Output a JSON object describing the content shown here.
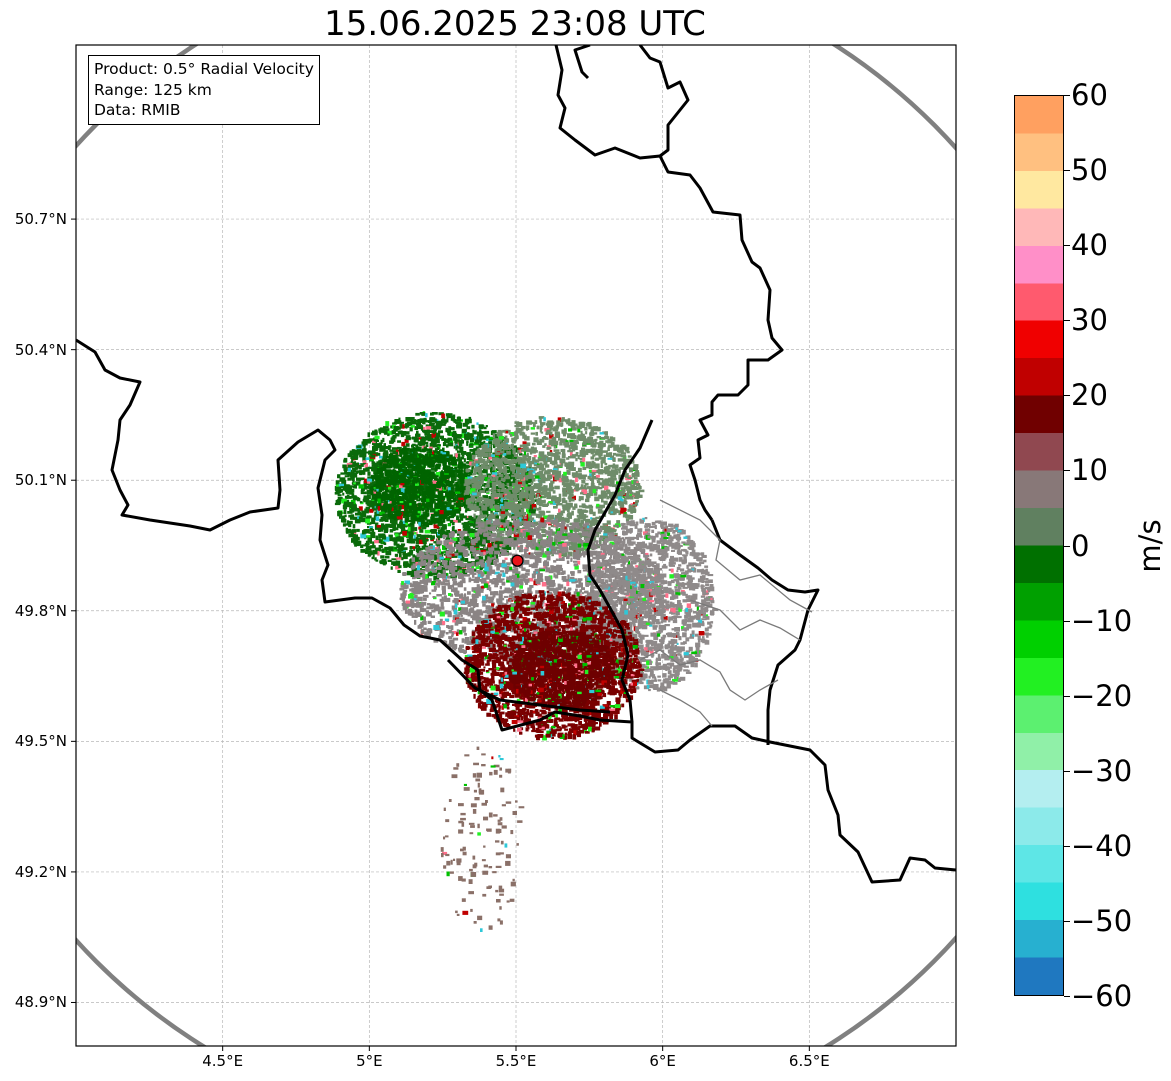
{
  "title": "15.06.2025 23:08 UTC",
  "info": {
    "product": "Product: 0.5° Radial Velocity",
    "range": "Range: 125 km",
    "source": "Data: RMIB"
  },
  "map": {
    "lon_range": [
      4.0,
      7.0
    ],
    "lat_range": [
      48.8,
      51.1
    ],
    "lat_ticks": [
      {
        "value": 50.7,
        "label": "50.7°N"
      },
      {
        "value": 50.4,
        "label": "50.4°N"
      },
      {
        "value": 50.1,
        "label": "50.1°N"
      },
      {
        "value": 49.8,
        "label": "49.8°N"
      },
      {
        "value": 49.5,
        "label": "49.5°N"
      },
      {
        "value": 49.2,
        "label": "49.2°N"
      },
      {
        "value": 48.9,
        "label": "48.9°N"
      }
    ],
    "lon_ticks": [
      {
        "value": 4.5,
        "label": "4.5°E"
      },
      {
        "value": 5.0,
        "label": "5°E"
      },
      {
        "value": 5.5,
        "label": "5.5°E"
      },
      {
        "value": 6.0,
        "label": "6°E"
      },
      {
        "value": 6.5,
        "label": "6.5°E"
      }
    ],
    "radar_site": {
      "lon": 5.505,
      "lat": 49.915
    },
    "range_ring_color": "#808080",
    "site_color": "#e8151b"
  },
  "colorbar": {
    "unit": "m/s",
    "min": -60,
    "max": 60,
    "ticks": [
      {
        "value": 60,
        "label": "60"
      },
      {
        "value": 50,
        "label": "50"
      },
      {
        "value": 40,
        "label": "40"
      },
      {
        "value": 30,
        "label": "30"
      },
      {
        "value": 20,
        "label": "20"
      },
      {
        "value": 10,
        "label": "10"
      },
      {
        "value": 0,
        "label": "0"
      },
      {
        "value": -10,
        "label": "−10"
      },
      {
        "value": -20,
        "label": "−20"
      },
      {
        "value": -30,
        "label": "−30"
      },
      {
        "value": -40,
        "label": "−40"
      },
      {
        "value": -50,
        "label": "−50"
      },
      {
        "value": -60,
        "label": "−60"
      }
    ],
    "colors": [
      "#1f78c0",
      "#27b0d0",
      "#2ee0e0",
      "#5ee6e6",
      "#8ceaea",
      "#b4eef0",
      "#90f0a8",
      "#5cf070",
      "#22f022",
      "#00d000",
      "#00a000",
      "#007000",
      "#608060",
      "#887878",
      "#904850",
      "#700000",
      "#c00000",
      "#f00000",
      "#ff5a6e",
      "#ff8fc8",
      "#ffb8b8",
      "#ffe8a0",
      "#ffc080",
      "#ffa060"
    ]
  },
  "echoes": [
    {
      "name": "north-approaching-zone",
      "lon": 5.22,
      "lat": 50.07,
      "rlon": 0.34,
      "rlat": 0.19,
      "color": "#0a6a0a",
      "density": 0.55
    },
    {
      "name": "north-approaching-core",
      "lon": 5.17,
      "lat": 50.09,
      "rlon": 0.17,
      "rlat": 0.09,
      "color": "#006400",
      "density": 0.75
    },
    {
      "name": "north-near-zero-zone",
      "lon": 5.62,
      "lat": 50.09,
      "rlon": 0.3,
      "rlat": 0.16,
      "color": "#6f8c6a",
      "density": 0.5
    },
    {
      "name": "center-near-zero-zone",
      "lon": 5.55,
      "lat": 49.85,
      "rlon": 0.45,
      "rlat": 0.17,
      "color": "#8a8484",
      "density": 0.55
    },
    {
      "name": "east-near-zero-zone",
      "lon": 5.95,
      "lat": 49.82,
      "rlon": 0.22,
      "rlat": 0.2,
      "color": "#8f8a8a",
      "density": 0.45
    },
    {
      "name": "south-receding-zone",
      "lon": 5.62,
      "lat": 49.68,
      "rlon": 0.3,
      "rlat": 0.17,
      "color": "#7a0000",
      "density": 0.8
    },
    {
      "name": "south-receding-core",
      "lon": 5.65,
      "lat": 49.67,
      "rlon": 0.18,
      "rlat": 0.09,
      "color": "#6e0000",
      "density": 0.9
    },
    {
      "name": "southwest-clutter-trail",
      "lon": 5.38,
      "lat": 49.28,
      "rlon": 0.14,
      "rlat": 0.22,
      "color": "#8a7068",
      "density": 0.05
    }
  ]
}
